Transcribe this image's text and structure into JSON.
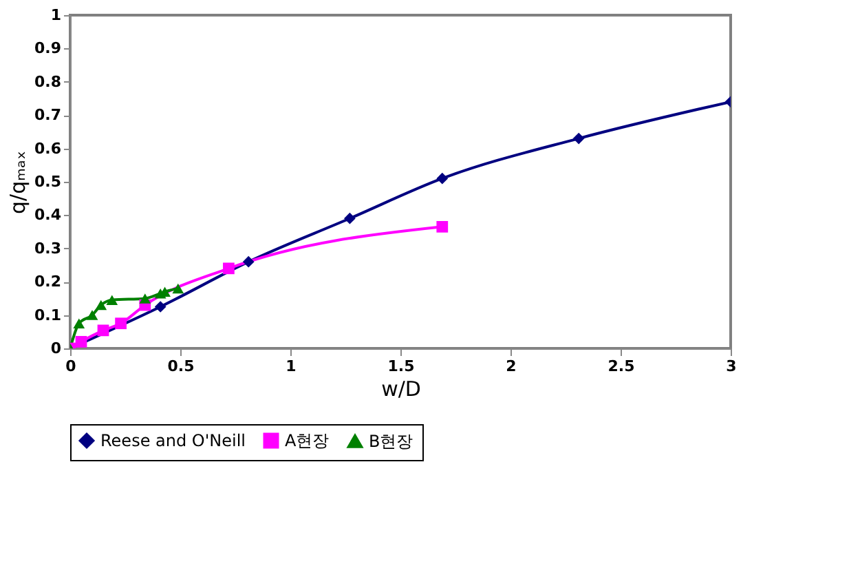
{
  "chart_data": {
    "type": "line",
    "xlabel": "w/D",
    "ylabel": "q/qₘₐₓ",
    "xlim": [
      0,
      3
    ],
    "ylim": [
      0,
      1
    ],
    "xticks": [
      0,
      0.5,
      1,
      1.5,
      2,
      2.5,
      3
    ],
    "yticks": [
      0,
      0.1,
      0.2,
      0.3,
      0.4,
      0.5,
      0.6,
      0.7,
      0.8,
      0.9,
      1
    ],
    "grid": false,
    "legend": "bottom",
    "series": [
      {
        "name": "Reese and O'Neill",
        "color": "#000080",
        "marker": "diamond",
        "x": [
          0,
          0.41,
          0.81,
          1.27,
          1.69,
          2.31,
          3.0
        ],
        "values": [
          0,
          0.125,
          0.26,
          0.39,
          0.51,
          0.63,
          0.74
        ]
      },
      {
        "name": "A현장",
        "color": "#ff00ff",
        "marker": "square",
        "x": [
          0,
          0.05,
          0.15,
          0.23,
          0.34,
          0.72,
          1.69
        ],
        "values": [
          0,
          0.02,
          0.054,
          0.075,
          0.13,
          0.24,
          0.365
        ]
      },
      {
        "name": "B현장",
        "color": "#008000",
        "marker": "triangle",
        "x": [
          0,
          0.04,
          0.1,
          0.14,
          0.19,
          0.34,
          0.41,
          0.43,
          0.49
        ],
        "values": [
          0,
          0.075,
          0.1,
          0.13,
          0.145,
          0.15,
          0.165,
          0.17,
          0.18
        ]
      }
    ]
  }
}
